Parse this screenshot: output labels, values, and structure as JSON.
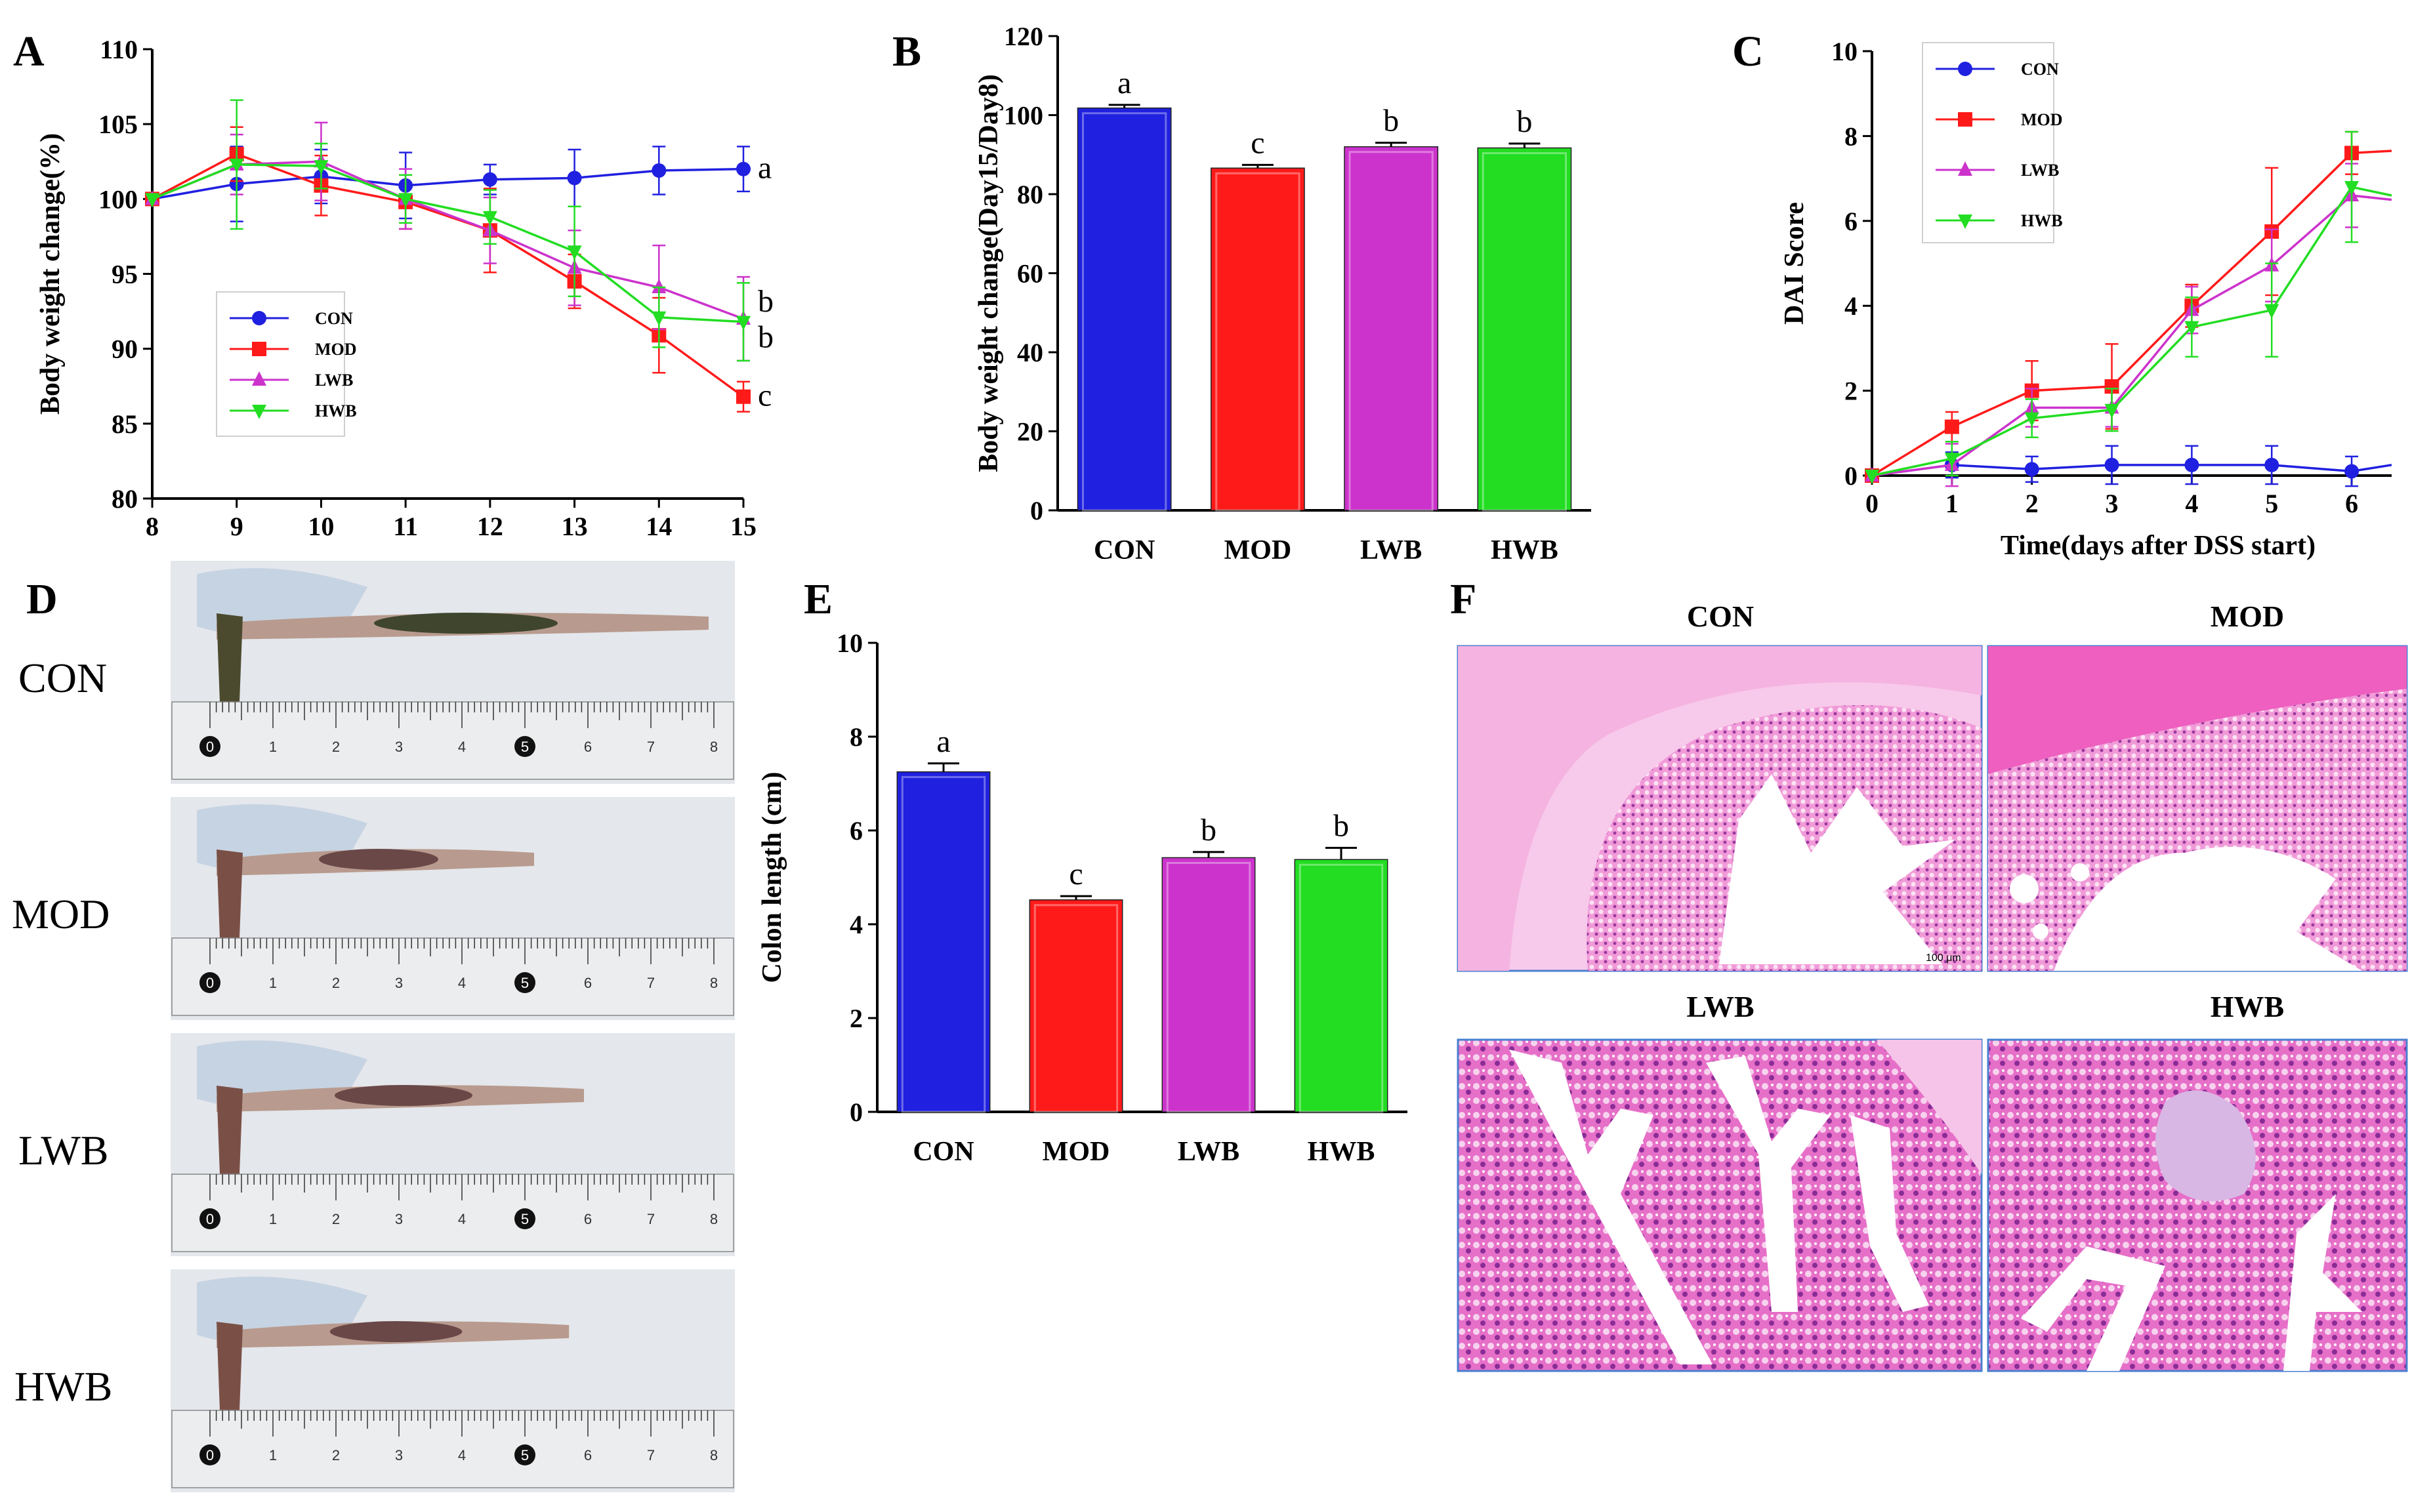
{
  "panel_labels": [
    "A",
    "B",
    "C",
    "D",
    "E",
    "F"
  ],
  "colors": {
    "CON": "#2020e0",
    "MOD": "#ff1a1a",
    "LWB": "#cc33cc",
    "HWB": "#22dd22"
  },
  "chart_data": [
    {
      "id": "A",
      "type": "line",
      "title": "",
      "xlabel": "",
      "ylabel": "Body weight change(%)",
      "xlim": [
        8,
        15
      ],
      "ylim": [
        80,
        110
      ],
      "xticks": [
        "8",
        "9",
        "10",
        "11",
        "12",
        "13",
        "14",
        "15"
      ],
      "yticks": [
        "80",
        "85",
        "90",
        "95",
        "100",
        "105",
        "110"
      ],
      "x": [
        8,
        9,
        10,
        11,
        12,
        13,
        14,
        15
      ],
      "series": [
        {
          "name": "CON",
          "values": [
            100,
            101.0,
            101.5,
            100.9,
            101.3,
            101.4,
            101.9,
            102.0
          ],
          "err": [
            0,
            2.5,
            1.8,
            2.2,
            1.0,
            1.9,
            1.6,
            1.5
          ],
          "marker": "circle",
          "label": "a"
        },
        {
          "name": "MOD",
          "values": [
            100,
            103.0,
            100.9,
            99.8,
            97.9,
            94.5,
            90.9,
            86.8
          ],
          "err": [
            0,
            1.8,
            2.0,
            1.8,
            2.8,
            1.8,
            2.5,
            1.0
          ],
          "marker": "square",
          "label": "c"
        },
        {
          "name": "LWB",
          "values": [
            100,
            102.3,
            102.5,
            100.0,
            97.9,
            95.4,
            94.1,
            92.0
          ],
          "err": [
            0,
            2.0,
            2.6,
            2.0,
            2.2,
            2.5,
            2.8,
            2.8
          ],
          "marker": "triangle",
          "label": "b"
        },
        {
          "name": "HWB",
          "values": [
            100,
            102.3,
            102.2,
            100.0,
            98.8,
            96.5,
            92.1,
            91.8
          ],
          "err": [
            0,
            4.3,
            1.5,
            1.6,
            1.8,
            3.0,
            2.0,
            2.6
          ],
          "marker": "triangle-down",
          "label": "b"
        }
      ],
      "legend": [
        "CON",
        "MOD",
        "LWB",
        "HWB"
      ],
      "legend_position": "lower-left"
    },
    {
      "id": "B",
      "type": "bar",
      "ylabel": "Body weight change(Day15/Day8)",
      "ylim": [
        0,
        120
      ],
      "yticks": [
        "0",
        "20",
        "40",
        "60",
        "80",
        "100",
        "120"
      ],
      "categories": [
        "CON",
        "MOD",
        "LWB",
        "HWB"
      ],
      "values": [
        101.8,
        86.6,
        92.0,
        91.7
      ],
      "err": [
        0.8,
        0.8,
        1.0,
        1.1
      ],
      "labels": [
        "a",
        "c",
        "b",
        "b"
      ]
    },
    {
      "id": "C",
      "type": "line",
      "xlabel": "Time(days after DSS start)",
      "ylabel": "DAI Score",
      "xlim": [
        0,
        6.5
      ],
      "ylim": [
        0,
        10
      ],
      "xticks": [
        "0",
        "1",
        "2",
        "3",
        "4",
        "5",
        "6"
      ],
      "yticks": [
        "0",
        "2",
        "4",
        "6",
        "8",
        "10"
      ],
      "x": [
        0,
        1,
        2,
        3,
        4,
        5,
        6,
        6.5
      ],
      "series": [
        {
          "name": "CON",
          "values": [
            0,
            0.25,
            0.15,
            0.25,
            0.25,
            0.25,
            0.1,
            0.25
          ],
          "err": [
            0,
            0.3,
            0.3,
            0.45,
            0.45,
            0.45,
            0.35,
            0
          ],
          "marker": "circle"
        },
        {
          "name": "MOD",
          "values": [
            0,
            1.15,
            2.0,
            2.1,
            4.0,
            5.75,
            7.6,
            7.65
          ],
          "err": [
            0,
            0.35,
            0.7,
            1.0,
            0.5,
            1.5,
            0.5,
            0
          ],
          "marker": "square"
        },
        {
          "name": "LWB",
          "values": [
            0,
            0.25,
            1.6,
            1.6,
            3.9,
            4.95,
            6.6,
            6.5
          ],
          "err": [
            0,
            0.5,
            0.45,
            0.45,
            0.55,
            0.85,
            0.75,
            0
          ],
          "marker": "triangle"
        },
        {
          "name": "HWB",
          "values": [
            0,
            0.4,
            1.35,
            1.55,
            3.5,
            3.9,
            6.8,
            6.6
          ],
          "err": [
            0,
            0.4,
            0.45,
            0.5,
            0.7,
            1.1,
            1.3,
            0
          ],
          "marker": "triangle-down"
        }
      ],
      "legend": [
        "CON",
        "MOD",
        "LWB",
        "HWB"
      ],
      "legend_position": "top-left"
    },
    {
      "id": "E",
      "type": "bar",
      "ylabel": "Colon length (cm)",
      "ylim": [
        0,
        10
      ],
      "yticks": [
        "0",
        "2",
        "4",
        "6",
        "8",
        "10"
      ],
      "categories": [
        "CON",
        "MOD",
        "LWB",
        "HWB"
      ],
      "values": [
        7.25,
        4.52,
        5.42,
        5.38
      ],
      "err": [
        0.18,
        0.08,
        0.12,
        0.25
      ],
      "labels": [
        "a",
        "c",
        "b",
        "b"
      ]
    }
  ],
  "panel_D": {
    "groups": [
      "CON",
      "MOD",
      "LWB",
      "HWB"
    ],
    "ruler_numbers": [
      "0",
      "1",
      "2",
      "3",
      "4",
      "5",
      "6",
      "7",
      "8"
    ]
  },
  "panel_F": {
    "titles": [
      "CON",
      "MOD",
      "LWB",
      "HWB"
    ],
    "scale_bar": "100 μm"
  }
}
